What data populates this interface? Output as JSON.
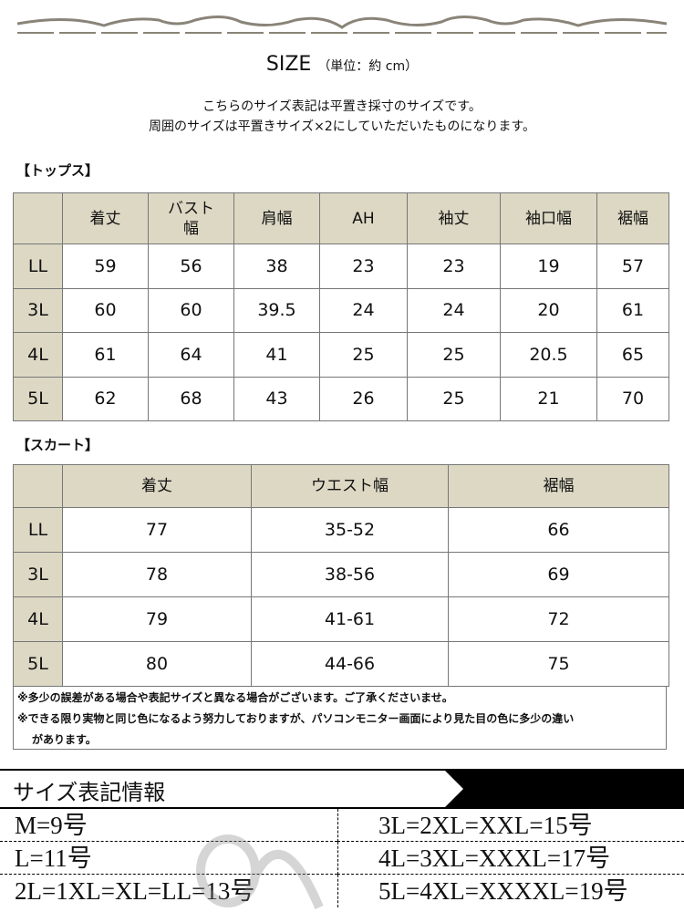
{
  "title": "SIZE",
  "unit": "（単位：約 cm）",
  "intro": [
    "こちらのサイズ表記は平置き採寸のサイズです。",
    "周囲のサイズは平置きサイズ×2にしていただいたものになります。"
  ],
  "tops": {
    "label": "【トップス】",
    "headers": [
      "着丈",
      "バスト幅",
      "肩幅",
      "AH",
      "袖丈",
      "袖口幅",
      "裾幅"
    ],
    "rows": [
      [
        "LL",
        "59",
        "56",
        "38",
        "23",
        "23",
        "19",
        "57"
      ],
      [
        "3L",
        "60",
        "60",
        "39.5",
        "24",
        "24",
        "20",
        "61"
      ],
      [
        "4L",
        "61",
        "64",
        "41",
        "25",
        "25",
        "20.5",
        "65"
      ],
      [
        "5L",
        "62",
        "68",
        "43",
        "26",
        "25",
        "21",
        "70"
      ]
    ]
  },
  "skirt": {
    "label": "【スカート】",
    "headers": [
      "着丈",
      "ウエスト幅",
      "裾幅"
    ],
    "rows": [
      [
        "LL",
        "77",
        "35-52",
        "66"
      ],
      [
        "3L",
        "78",
        "38-56",
        "69"
      ],
      [
        "4L",
        "79",
        "41-61",
        "72"
      ],
      [
        "5L",
        "80",
        "44-66",
        "75"
      ]
    ]
  },
  "notes": [
    "※多少の誤差がある場合や表記サイズと異なる場合がございます。ご了承くださいませ。",
    "※できる限り実物と同じ色になるよう努力しておりますが、パソコンモニター画面により見た目の色に多少の違い",
    "があります。"
  ],
  "info": {
    "title": "サイズ表記情報",
    "items": [
      "M=9号",
      "3L=2XL=XXL=15号",
      "L=11号",
      "4L=3XL=XXXL=17号",
      "2L=1XL=XL=LL=13号",
      "5L=4XL=XXXXL=19号"
    ]
  },
  "colors": {
    "header_bg": "#ddd8c4",
    "border": "#777777",
    "ornament": "#8a8478"
  }
}
